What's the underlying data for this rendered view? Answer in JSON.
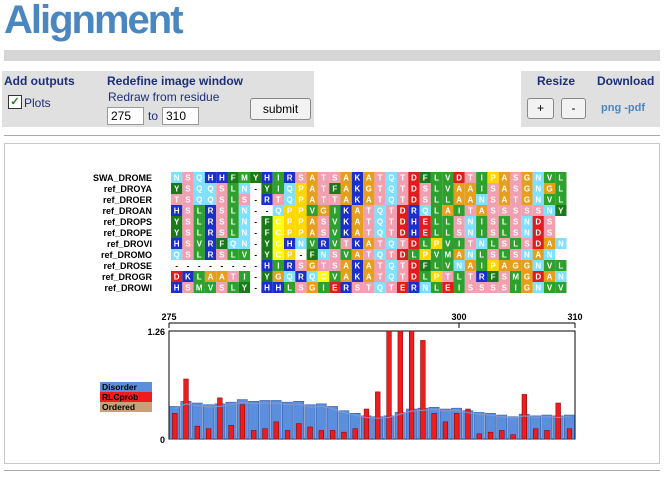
{
  "page": {
    "title": "Alignment"
  },
  "outputs": {
    "heading": "Add outputs",
    "plots_label": "Plots",
    "plots_checked": true
  },
  "redefine": {
    "heading": "Redefine image window",
    "subheading": "Redraw from residue",
    "from_value": "275",
    "to_label": "to",
    "to_value": "310",
    "submit_label": "submit"
  },
  "resize": {
    "heading": "Resize",
    "plus_label": "+",
    "minus_label": "-"
  },
  "download": {
    "heading": "Download",
    "links": "png -pdf"
  },
  "alignment": {
    "rows": [
      {
        "name": "SWA_DROME",
        "seq": "NSQHHFMYHIRSATSAKATQTDFLVDTIPASGNVL"
      },
      {
        "name": "ref_DROYA",
        "seq": "YSQQSLN-YIQPATFAKGTQTDSLVAAISASGNGL"
      },
      {
        "name": "ref_DROER",
        "seq": "TSQQSLS-RTQPATTAKATQTDSLLAANSATGNVL"
      },
      {
        "name": "ref_DROAN",
        "seq": "HSLRSLN--QPPVGIKATQTDRQLAITASSSSSNY"
      },
      {
        "name": "ref_DROPS",
        "seq": "YSLRSLN-FCPPASVKATQTDHELLSNISLSNDS"
      },
      {
        "name": "ref_DROPE",
        "seq": "YSLRSLN-FCPPASVKATQTDHELLSNISLSNDS"
      },
      {
        "name": "ref_DROVI",
        "seq": "HSVRFQN-YCHNVRVTKATQTDLPVITNLSLSDAN"
      },
      {
        "name": "ref_DROMO",
        "seq": "QSLRSLV-YCP-FNSVATQTDLPVMANLSLSNAN"
      },
      {
        "name": "ref_DROSE",
        "seq": "--------HIRSGTSAKATQTDFLVNAIPAGGNVL"
      },
      {
        "name": "ref_DROGR",
        "seq": "DKLAATI-YGQRQCVAKATQTDLPTLTRFSMGDAN"
      },
      {
        "name": "ref_DROWI",
        "seq": "HSMVSLY-HHLSGIERSTQTERNLEISSSSIGNVV"
      }
    ]
  },
  "chart_data": {
    "type": "bar",
    "x_start": 275,
    "x_end": 310,
    "x_ticks": [
      "275",
      "300",
      "310"
    ],
    "y_ticks": [
      "1.26",
      "0"
    ],
    "ylim": [
      0,
      1.26
    ],
    "legend": [
      "Disorder",
      "RLCprob",
      "Ordered"
    ],
    "legend_colors": [
      "#5b8fdd",
      "#ee1c1c",
      "#c8a07a"
    ],
    "series": [
      {
        "name": "Disorder",
        "values": [
          0.38,
          0.44,
          0.42,
          0.4,
          0.41,
          0.43,
          0.46,
          0.44,
          0.45,
          0.45,
          0.43,
          0.44,
          0.4,
          0.41,
          0.38,
          0.33,
          0.3,
          0.27,
          0.26,
          0.27,
          0.31,
          0.35,
          0.36,
          0.37,
          0.35,
          0.36,
          0.33,
          0.31,
          0.3,
          0.28,
          0.26,
          0.29,
          0.27,
          0.28,
          0.27,
          0.28
        ]
      },
      {
        "name": "RLCprob",
        "values": [
          0.3,
          0.7,
          0.15,
          0.12,
          0.48,
          0.16,
          0.4,
          0.1,
          0.12,
          0.2,
          0.1,
          0.18,
          0.14,
          0.1,
          0.1,
          0.08,
          0.12,
          0.35,
          0.55,
          1.26,
          1.26,
          1.26,
          1.15,
          0.3,
          0.2,
          0.3,
          0.35,
          0.06,
          0.08,
          0.1,
          0.05,
          0.52,
          0.12,
          0.1,
          0.42,
          0.12
        ]
      }
    ]
  }
}
